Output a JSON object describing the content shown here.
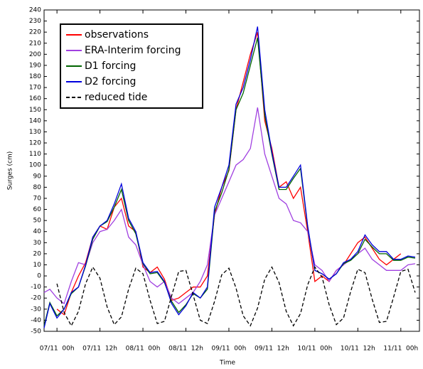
{
  "chart_data": {
    "type": "line",
    "x_label": "Time",
    "y_label": "Surges (cm)",
    "x": [
      -3.6,
      -2,
      0,
      2,
      4,
      6,
      8,
      10,
      12,
      14,
      16,
      18,
      20,
      22,
      24,
      26,
      28,
      30,
      32,
      34,
      36,
      38,
      40,
      42,
      44,
      46,
      48,
      50,
      52,
      54,
      56,
      58,
      60,
      62,
      64,
      66,
      68,
      70,
      72,
      74,
      76,
      78,
      80,
      82,
      84,
      86,
      88,
      90,
      92,
      94,
      96,
      98,
      100
    ],
    "xlim": [
      -3.6,
      101.2
    ],
    "xticks": [
      {
        "value": 0,
        "label": "07/11  00h"
      },
      {
        "value": 12,
        "label": "07/11  12h"
      },
      {
        "value": 24,
        "label": "08/11  00h"
      },
      {
        "value": 36,
        "label": "08/11  12h"
      },
      {
        "value": 48,
        "label": "09/11  00h"
      },
      {
        "value": 60,
        "label": "09/11  12h"
      },
      {
        "value": 72,
        "label": "10/11  00h"
      },
      {
        "value": 84,
        "label": "10/11  12h"
      },
      {
        "value": 96,
        "label": "11/11  00h"
      }
    ],
    "ylim": [
      -50,
      240
    ],
    "yticks": [
      -50,
      -40,
      -30,
      -20,
      -10,
      0,
      10,
      20,
      30,
      40,
      50,
      60,
      70,
      80,
      90,
      100,
      110,
      120,
      130,
      140,
      150,
      160,
      170,
      180,
      190,
      200,
      210,
      220,
      230,
      240
    ],
    "legend": "upper left",
    "series": [
      {
        "name": "observations",
        "color": "#ff0000",
        "style": "solid",
        "values": [
          null,
          null,
          -30,
          -35,
          -15,
          0,
          12,
          35,
          45,
          42,
          62,
          70,
          45,
          40,
          8,
          3,
          8,
          -3,
          -22,
          -20,
          -15,
          -10,
          -10,
          0,
          55,
          80,
          95,
          150,
          175,
          200,
          220,
          140,
          115,
          80,
          85,
          70,
          80,
          40,
          -5,
          0,
          -5,
          5,
          10,
          20,
          30,
          35,
          25,
          15,
          10,
          15,
          20,
          null,
          null
        ]
      },
      {
        "name": "ERA-Interim forcing",
        "color": "#a040e0",
        "style": "solid",
        "values": [
          -15,
          -12,
          -20,
          -25,
          -5,
          12,
          10,
          30,
          40,
          42,
          50,
          60,
          35,
          28,
          10,
          -5,
          -10,
          -5,
          -20,
          -25,
          -20,
          -15,
          -5,
          10,
          55,
          70,
          85,
          100,
          105,
          115,
          152,
          110,
          90,
          70,
          65,
          50,
          48,
          40,
          10,
          5,
          -5,
          5,
          10,
          15,
          20,
          25,
          15,
          10,
          5,
          5,
          5,
          10,
          11
        ]
      },
      {
        "name": "D1 forcing",
        "color": "#006400",
        "style": "solid",
        "values": [
          -45,
          -24,
          -36,
          -30,
          -16,
          -10,
          9,
          33,
          45,
          49,
          62,
          78,
          50,
          38,
          11,
          2,
          3,
          -6,
          -23,
          -33,
          -26,
          -16,
          -20,
          -12,
          58,
          75,
          96,
          150,
          165,
          190,
          215,
          145,
          110,
          78,
          78,
          88,
          97,
          44,
          5,
          2,
          -3,
          2,
          11,
          14,
          20,
          33,
          26,
          20,
          20,
          14,
          14,
          17,
          16
        ]
      },
      {
        "name": "D2 forcing",
        "color": "#0000dd",
        "style": "solid",
        "values": [
          -47,
          -25,
          -38,
          -30,
          -15,
          -10,
          10,
          35,
          45,
          50,
          65,
          83,
          52,
          40,
          12,
          3,
          4,
          -5,
          -25,
          -35,
          -27,
          -15,
          -20,
          -10,
          62,
          80,
          100,
          155,
          170,
          195,
          225,
          150,
          112,
          80,
          80,
          90,
          100,
          45,
          5,
          2,
          -3,
          2,
          12,
          15,
          22,
          37,
          28,
          22,
          22,
          15,
          15,
          18,
          17
        ]
      },
      {
        "name": "reduced tide",
        "color": "#000000",
        "style": "dashed",
        "values": [
          null,
          null,
          -7,
          -33,
          -45,
          -32,
          -7,
          8,
          -2,
          -28,
          -44,
          -37,
          -12,
          7,
          2,
          -22,
          -43,
          -41,
          -18,
          4,
          5,
          -17,
          -40,
          -43,
          -23,
          1,
          7,
          -11,
          -36,
          -45,
          -29,
          -3,
          8,
          -6,
          -32,
          -45,
          -34,
          -8,
          8,
          -1,
          -26,
          -44,
          -38,
          -14,
          6,
          3,
          -21,
          -42,
          -41,
          -19,
          4,
          6,
          -15
        ]
      }
    ]
  }
}
